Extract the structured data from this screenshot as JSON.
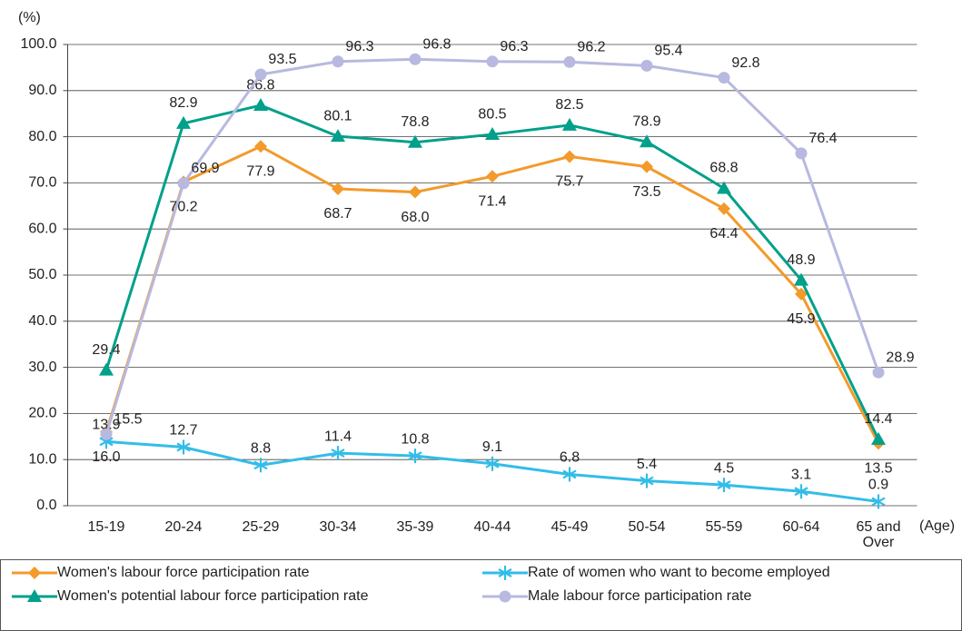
{
  "chart_data": {
    "type": "line",
    "y_axis_label": "(%)",
    "x_axis_label": "(Age)",
    "categories": [
      "15-19",
      "20-24",
      "25-29",
      "30-34",
      "35-39",
      "40-44",
      "45-49",
      "50-54",
      "55-59",
      "60-64",
      "65 and Over"
    ],
    "ylim": [
      0,
      100
    ],
    "yticks": [
      {
        "value": 0,
        "label": "0.0"
      },
      {
        "value": 10,
        "label": "10.0"
      },
      {
        "value": 20,
        "label": "20.0"
      },
      {
        "value": 30,
        "label": "30.0"
      },
      {
        "value": 40,
        "label": "40.0"
      },
      {
        "value": 50,
        "label": "50.0"
      },
      {
        "value": 60,
        "label": "60.0"
      },
      {
        "value": 70,
        "label": "70.0"
      },
      {
        "value": 80,
        "label": "80.0"
      },
      {
        "value": 90,
        "label": "90.0"
      },
      {
        "value": 100,
        "label": "100.0"
      }
    ],
    "grid": true,
    "series": [
      {
        "name": "Women's labour force participation rate",
        "color": "#f39a2b",
        "marker": "diamond",
        "values": [
          16.0,
          70.2,
          77.9,
          68.7,
          68.0,
          71.4,
          75.7,
          73.5,
          64.4,
          45.9,
          13.5
        ],
        "value_labels": [
          "16.0",
          "70.2",
          "77.9",
          "68.7",
          "68.0",
          "71.4",
          "75.7",
          "73.5",
          "64.4",
          "45.9",
          "13.5"
        ]
      },
      {
        "name": "Rate of women who want to become employed",
        "color": "#33bde8",
        "marker": "asterisk",
        "values": [
          13.9,
          12.7,
          8.8,
          11.4,
          10.8,
          9.1,
          6.8,
          5.4,
          4.5,
          3.1,
          0.9
        ],
        "value_labels": [
          "13.9",
          "12.7",
          "8.8",
          "11.4",
          "10.8",
          "9.1",
          "6.8",
          "5.4",
          "4.5",
          "3.1",
          "0.9"
        ]
      },
      {
        "name": "Women's potential labour force participation rate",
        "color": "#00a08a",
        "marker": "triangle",
        "values": [
          29.4,
          82.9,
          86.8,
          80.1,
          78.8,
          80.5,
          82.5,
          78.9,
          68.8,
          48.9,
          14.4
        ],
        "value_labels": [
          "29.4",
          "82.9",
          "86.8",
          "80.1",
          "78.8",
          "80.5",
          "82.5",
          "78.9",
          "68.8",
          "48.9",
          "14.4"
        ]
      },
      {
        "name": "Male labour force participation rate",
        "color": "#b7b9e0",
        "marker": "circle",
        "values": [
          15.5,
          69.9,
          93.5,
          96.3,
          96.8,
          96.3,
          96.2,
          95.4,
          92.8,
          76.4,
          28.9
        ],
        "value_labels": [
          "15.5",
          "69.9",
          "93.5",
          "96.3",
          "96.8",
          "96.3",
          "96.2",
          "95.4",
          "92.8",
          "76.4",
          "28.9"
        ]
      }
    ]
  }
}
